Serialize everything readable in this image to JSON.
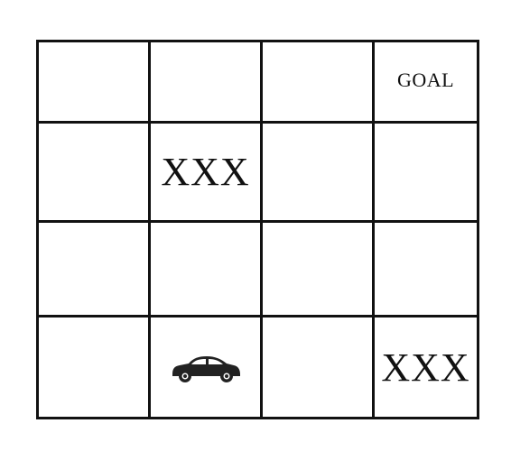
{
  "grid": {
    "rows": 4,
    "cols": 4,
    "cells": [
      [
        "",
        "",
        "",
        "goal"
      ],
      [
        "",
        "obstacle",
        "",
        ""
      ],
      [
        "",
        "",
        "",
        ""
      ],
      [
        "",
        "car",
        "",
        "obstacle"
      ]
    ]
  },
  "labels": {
    "goal": "GOAL",
    "obstacle_r2c2": "XXX",
    "obstacle_r4c4": "XXX"
  },
  "icons": {
    "agent": "car-icon"
  },
  "colors": {
    "line": "#111111",
    "background": "#ffffff"
  }
}
